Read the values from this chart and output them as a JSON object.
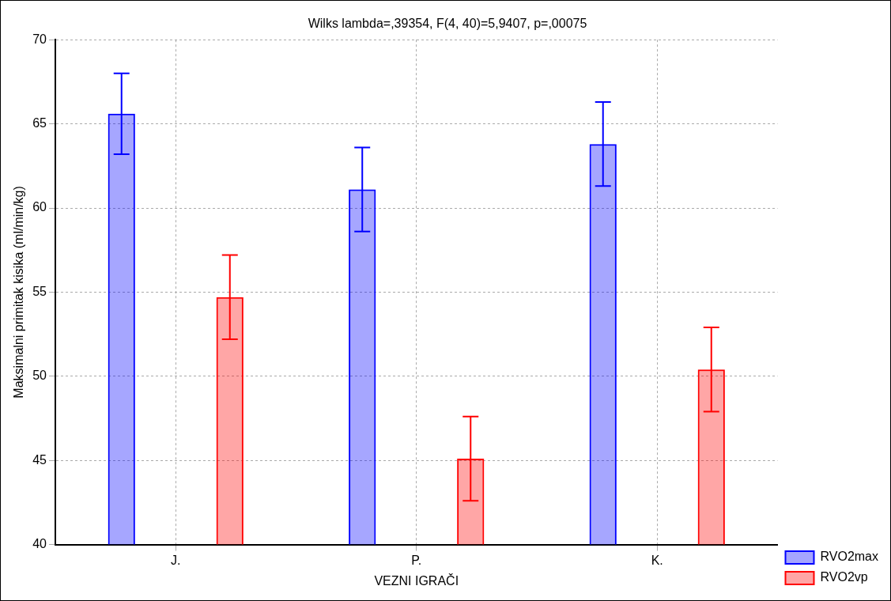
{
  "chart_data": {
    "type": "bar",
    "title": "Wilks lambda=,39354, F(4, 40)=5,9407, p=,00075",
    "xlabel": "VEZNI IGRAČI",
    "ylabel": "Maksimalni primitak kisika (ml/min/kg)",
    "categories": [
      "J.",
      "P.",
      "K."
    ],
    "series": [
      {
        "name": "RVO2max",
        "color": "#0000ff",
        "values": [
          65.6,
          61.1,
          63.8
        ],
        "errors": [
          2.4,
          2.5,
          2.5
        ]
      },
      {
        "name": "RVO2vp",
        "color": "#ff0000",
        "values": [
          54.7,
          45.1,
          50.4
        ],
        "errors": [
          2.5,
          2.5,
          2.5
        ]
      }
    ],
    "ylim": [
      40,
      70
    ],
    "yticks": [
      40,
      45,
      50,
      55,
      60,
      65,
      70
    ],
    "grid": true,
    "legend": "bottom right"
  }
}
